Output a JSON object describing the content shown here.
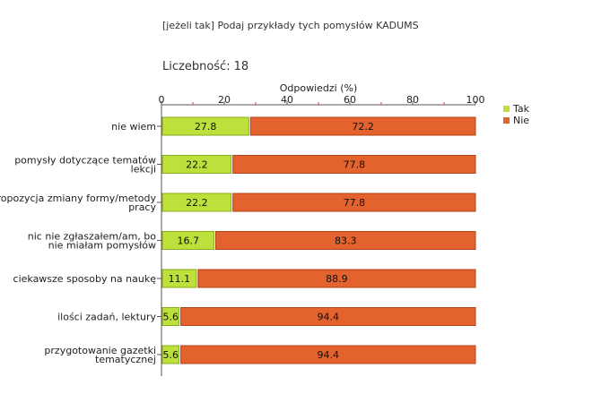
{
  "header": {
    "question": "[jeżeli tak] Podaj przykłady tych pomysłów KADUMS",
    "count_label": "Liczebność:",
    "count_value": "18"
  },
  "chart_data": {
    "type": "bar",
    "orientation": "horizontal",
    "stacked": true,
    "xlabel": "Odpowiedzi (%)",
    "xlim": [
      0,
      100
    ],
    "xticks": [
      0,
      20,
      40,
      60,
      80,
      100
    ],
    "legend_position": "top-right",
    "categories": [
      [
        "nie wiem"
      ],
      [
        "pomysły dotyczące tematów",
        "lekcji"
      ],
      [
        "Propozycja zmiany formy/metody",
        "pracy"
      ],
      [
        "nic nie zgłaszałem/am, bo",
        "nie miałam pomysłów"
      ],
      [
        "ciekawsze sposoby na naukę"
      ],
      [
        "ilości zadań, lektury"
      ],
      [
        "przygotowanie gazetki",
        "tematycznej"
      ]
    ],
    "series": [
      {
        "name": "Tak",
        "color": "#bde03a",
        "border": "#8aab1e",
        "values": [
          27.8,
          22.2,
          22.2,
          16.7,
          11.1,
          5.6,
          5.6
        ]
      },
      {
        "name": "Nie",
        "color": "#e3622d",
        "border": "#b0441a",
        "values": [
          72.2,
          77.8,
          77.8,
          83.3,
          88.9,
          94.4,
          94.4
        ]
      }
    ]
  }
}
